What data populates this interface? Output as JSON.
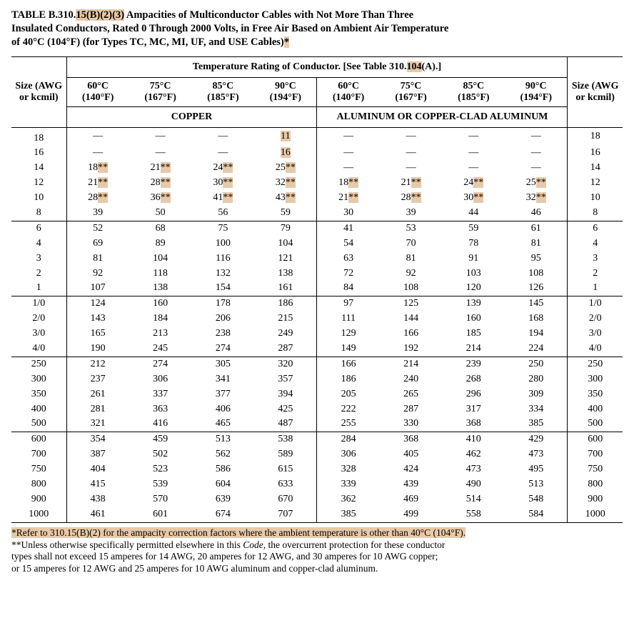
{
  "title": {
    "table_ref_prefix": "TABLE B.310.",
    "table_ref_hl": "15(B)(2)(3)",
    "line1_rest": "  Ampacities of Multiconductor Cables with Not More Than Three",
    "line2": "Insulated Conductors, Rated 0 Through 2000 Volts, in Free Air Based on Ambient Air Temperature",
    "line3_a": "of 40°C (104°F) (for Types TC, MC, MI, UF, and USE Cables)",
    "line3_hl": "*"
  },
  "headers": {
    "spanner_a": "Temperature Rating of Conductor. [See Table 310.",
    "spanner_hl": "104",
    "spanner_b": "(A).]",
    "size_label_a": "Size (AWG",
    "size_label_b": "or kcmil)",
    "temps": [
      "60°C",
      "75°C",
      "85°C",
      "90°C",
      "60°C",
      "75°C",
      "85°C",
      "90°C"
    ],
    "tempsF": [
      "(140°F)",
      "(167°F)",
      "(185°F)",
      "(194°F)",
      "(140°F)",
      "(167°F)",
      "(185°F)",
      "(194°F)"
    ],
    "material_copper": "COPPER",
    "material_al": "ALUMINUM OR COPPER-CLAD ALUMINUM"
  },
  "groups": [
    {
      "rows": [
        {
          "size": "18",
          "c": [
            "—",
            "—",
            "—",
            [
              "hl",
              "11"
            ]
          ],
          "a": [
            "—",
            "—",
            "—",
            "—"
          ]
        },
        {
          "size": "16",
          "c": [
            "—",
            "—",
            "—",
            [
              "hl",
              "16"
            ]
          ],
          "a": [
            "—",
            "—",
            "—",
            "—"
          ]
        },
        {
          "size": "14",
          "c": [
            [
              "dn",
              "18"
            ],
            [
              "dn",
              "21"
            ],
            [
              "dn",
              "24"
            ],
            [
              "dn",
              "25"
            ]
          ],
          "a": [
            "—",
            "—",
            "—",
            "—"
          ]
        },
        {
          "size": "12",
          "c": [
            [
              "dn",
              "21"
            ],
            [
              "dn",
              "28"
            ],
            [
              "dn",
              "30"
            ],
            [
              "dn",
              "32"
            ]
          ],
          "a": [
            [
              "dn",
              "18"
            ],
            [
              "dn",
              "21"
            ],
            [
              "dn",
              "24"
            ],
            [
              "dn",
              "25"
            ]
          ]
        },
        {
          "size": "10",
          "c": [
            [
              "dn",
              "28"
            ],
            [
              "dn",
              "36"
            ],
            [
              "dn",
              "41"
            ],
            [
              "dn",
              "43"
            ]
          ],
          "a": [
            [
              "dn",
              "21"
            ],
            [
              "dn",
              "28"
            ],
            [
              "dn",
              "30"
            ],
            [
              "dn",
              "32"
            ]
          ]
        },
        {
          "size": "8",
          "c": [
            "39",
            "50",
            "56",
            "59"
          ],
          "a": [
            "30",
            "39",
            "44",
            "46"
          ]
        }
      ]
    },
    {
      "rows": [
        {
          "size": "6",
          "c": [
            "52",
            "68",
            "75",
            "79"
          ],
          "a": [
            "41",
            "53",
            "59",
            "61"
          ]
        },
        {
          "size": "4",
          "c": [
            "69",
            "89",
            "100",
            "104"
          ],
          "a": [
            "54",
            "70",
            "78",
            "81"
          ]
        },
        {
          "size": "3",
          "c": [
            "81",
            "104",
            "116",
            "121"
          ],
          "a": [
            "63",
            "81",
            "91",
            "95"
          ]
        },
        {
          "size": "2",
          "c": [
            "92",
            "118",
            "132",
            "138"
          ],
          "a": [
            "72",
            "92",
            "103",
            "108"
          ]
        },
        {
          "size": "1",
          "c": [
            "107",
            "138",
            "154",
            "161"
          ],
          "a": [
            "84",
            "108",
            "120",
            "126"
          ]
        }
      ]
    },
    {
      "rows": [
        {
          "size": "1/0",
          "c": [
            "124",
            "160",
            "178",
            "186"
          ],
          "a": [
            "97",
            "125",
            "139",
            "145"
          ]
        },
        {
          "size": "2/0",
          "c": [
            "143",
            "184",
            "206",
            "215"
          ],
          "a": [
            "111",
            "144",
            "160",
            "168"
          ]
        },
        {
          "size": "3/0",
          "c": [
            "165",
            "213",
            "238",
            "249"
          ],
          "a": [
            "129",
            "166",
            "185",
            "194"
          ]
        },
        {
          "size": "4/0",
          "c": [
            "190",
            "245",
            "274",
            "287"
          ],
          "a": [
            "149",
            "192",
            "214",
            "224"
          ]
        }
      ]
    },
    {
      "rows": [
        {
          "size": "250",
          "c": [
            "212",
            "274",
            "305",
            "320"
          ],
          "a": [
            "166",
            "214",
            "239",
            "250"
          ]
        },
        {
          "size": "300",
          "c": [
            "237",
            "306",
            "341",
            "357"
          ],
          "a": [
            "186",
            "240",
            "268",
            "280"
          ]
        },
        {
          "size": "350",
          "c": [
            "261",
            "337",
            "377",
            "394"
          ],
          "a": [
            "205",
            "265",
            "296",
            "309"
          ]
        },
        {
          "size": "400",
          "c": [
            "281",
            "363",
            "406",
            "425"
          ],
          "a": [
            "222",
            "287",
            "317",
            "334"
          ]
        },
        {
          "size": "500",
          "c": [
            "321",
            "416",
            "465",
            "487"
          ],
          "a": [
            "255",
            "330",
            "368",
            "385"
          ]
        }
      ]
    },
    {
      "rows": [
        {
          "size": "600",
          "c": [
            "354",
            "459",
            "513",
            "538"
          ],
          "a": [
            "284",
            "368",
            "410",
            "429"
          ]
        },
        {
          "size": "700",
          "c": [
            "387",
            "502",
            "562",
            "589"
          ],
          "a": [
            "306",
            "405",
            "462",
            "473"
          ]
        },
        {
          "size": "750",
          "c": [
            "404",
            "523",
            "586",
            "615"
          ],
          "a": [
            "328",
            "424",
            "473",
            "495"
          ]
        },
        {
          "size": "800",
          "c": [
            "415",
            "539",
            "604",
            "633"
          ],
          "a": [
            "339",
            "439",
            "490",
            "513"
          ]
        },
        {
          "size": "900",
          "c": [
            "438",
            "570",
            "639",
            "670"
          ],
          "a": [
            "362",
            "469",
            "514",
            "548"
          ]
        },
        {
          "size": "1000",
          "c": [
            "461",
            "601",
            "674",
            "707"
          ],
          "a": [
            "385",
            "499",
            "558",
            "584"
          ]
        }
      ]
    }
  ],
  "footnotes": {
    "f1_hl": "*Refer to 310.15(B)(2) for the ampacity correction factors where the ambient temperature is other than 40°C (104°F).",
    "f2_a": "**Unless otherwise specifically permitted elsewhere in this ",
    "f2_i": "Code",
    "f2_b": ", the overcurrent protection for these conductor",
    "f2_c": "types shall not exceed 15 amperes for 14 AWG, 20 amperes for 12 AWG, and 30 amperes for 10 AWG copper;",
    "f2_d": "or 15 amperes for 12 AWG and 25 amperes for 10 AWG aluminum and copper-clad aluminum."
  },
  "style": {
    "highlight_color": "#e8c9a7",
    "dagger_suffix": "**"
  }
}
